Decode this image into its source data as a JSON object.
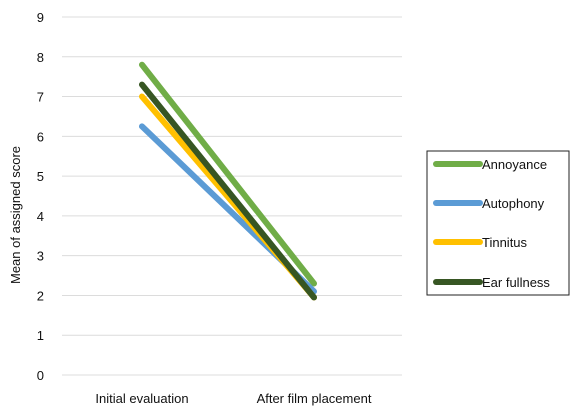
{
  "chart_data": {
    "type": "line",
    "title": "",
    "xlabel": "",
    "ylabel": "Mean of assigned score",
    "categories": [
      "Initial evaluation",
      "After film placement"
    ],
    "ylim": [
      0,
      9
    ],
    "yticks": [
      0,
      1,
      2,
      3,
      4,
      5,
      6,
      7,
      8,
      9
    ],
    "grid": true,
    "legend_position": "right",
    "series": [
      {
        "name": "Annoyance",
        "values": [
          7.8,
          2.3
        ],
        "color": "#70ad47"
      },
      {
        "name": "Autophony",
        "values": [
          6.25,
          2.1
        ],
        "color": "#5b9bd5"
      },
      {
        "name": "Tinnitus",
        "values": [
          7.0,
          1.95
        ],
        "color": "#ffc000"
      },
      {
        "name": "Ear fullness",
        "values": [
          7.3,
          1.95
        ],
        "color": "#375623"
      }
    ]
  }
}
